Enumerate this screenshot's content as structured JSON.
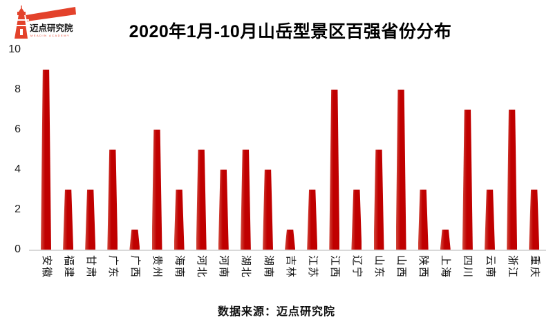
{
  "logo": {
    "name": "迈点研究院",
    "subtext": "MEADIN ACADEMY",
    "color": "#e3422b"
  },
  "chart_data": {
    "type": "bar",
    "title": "2020年1月-10月山岳型景区百强省份分布",
    "categories": [
      "安徽",
      "福建",
      "甘肃",
      "广东",
      "广西",
      "贵州",
      "海南",
      "河北",
      "河南",
      "湖北",
      "湖南",
      "吉林",
      "江苏",
      "江西",
      "辽宁",
      "山东",
      "山西",
      "陕西",
      "上海",
      "四川",
      "云南",
      "浙江",
      "重庆"
    ],
    "values": [
      9,
      3,
      3,
      5,
      1,
      6,
      3,
      5,
      4,
      5,
      4,
      1,
      3,
      8,
      3,
      5,
      8,
      3,
      1,
      7,
      3,
      7,
      3
    ],
    "xlabel": "",
    "ylabel": "",
    "ylim": [
      0,
      10
    ],
    "yticks": [
      0,
      2,
      4,
      6,
      8,
      10
    ],
    "grid": false,
    "legend": "none",
    "bar_color": "#c00000",
    "axis_line_color": "#d9d9d9"
  },
  "footer": {
    "source_note": "数据来源：迈点研究院"
  }
}
